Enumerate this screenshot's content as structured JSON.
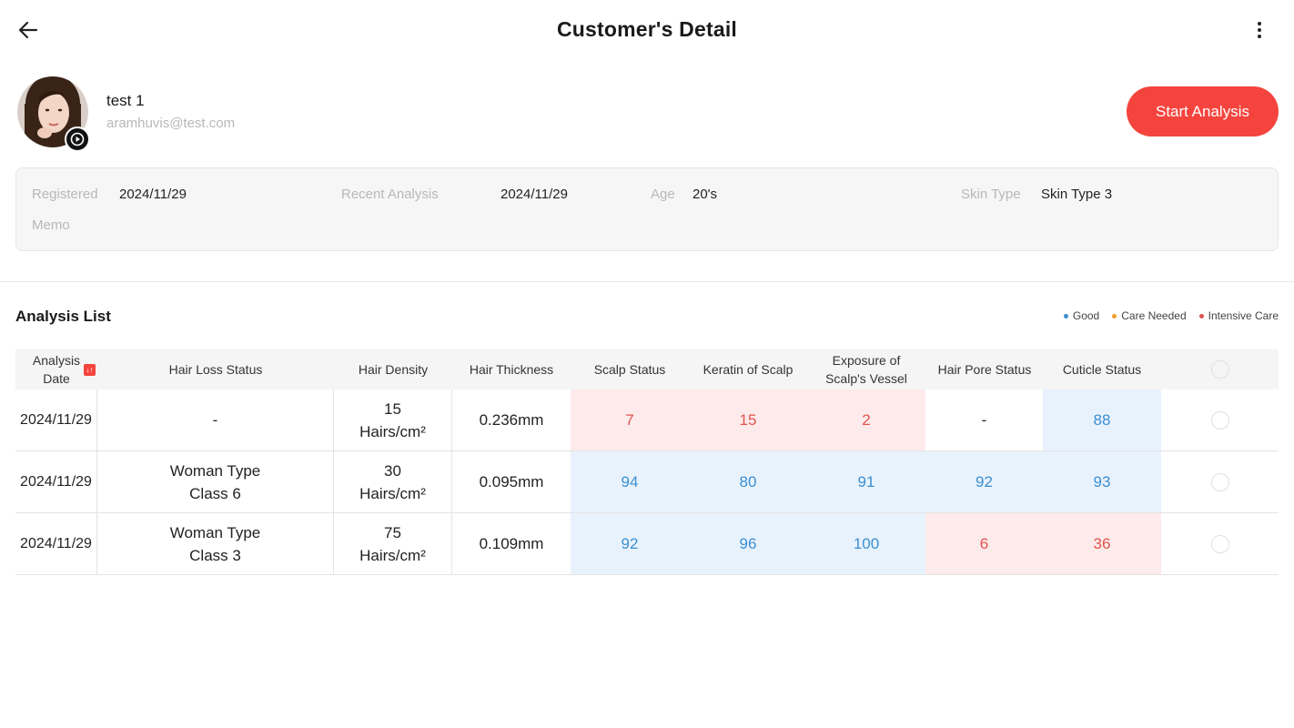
{
  "header": {
    "title": "Customer's Detail",
    "back_icon": "arrow-left-icon",
    "more_icon": "more-vertical-icon"
  },
  "customer": {
    "name": "test 1",
    "email": "aramhuvis@test.com",
    "badge_icon": "play-circle-icon"
  },
  "actions": {
    "start_analysis": "Start Analysis"
  },
  "info": {
    "registered_label": "Registered",
    "registered_value": "2024/11/29",
    "recent_label": "Recent Analysis",
    "recent_value": "2024/11/29",
    "age_label": "Age",
    "age_value": "20's",
    "skin_label": "Skin Type",
    "skin_value": "Skin Type 3",
    "memo_label": "Memo"
  },
  "analysis": {
    "title": "Analysis List",
    "legend": [
      {
        "label": "Good",
        "color": "#3b8fd0"
      },
      {
        "label": "Care Needed",
        "color": "#f0a030"
      },
      {
        "label": "Intensive Care",
        "color": "#e0534d"
      }
    ],
    "columns": {
      "date": "Analysis Date",
      "sort_badge": "↓↑",
      "hair_loss": "Hair Loss Status",
      "density": "Hair Density",
      "thickness": "Hair Thickness",
      "scalp": "Scalp Status",
      "keratin": "Keratin of Scalp",
      "vessel": "Exposure of Scalp's Vessel",
      "pore": "Hair Pore Status",
      "cuticle": "Cuticle Status"
    },
    "rows": [
      {
        "date": "2024/11/29",
        "hair_loss": "-",
        "density": "15 Hairs/cm²",
        "thickness": "0.236mm",
        "scalp": "7",
        "keratin": "15",
        "vessel": "2",
        "pore": "-",
        "cuticle": "88"
      },
      {
        "date": "2024/11/29",
        "hair_loss": "Woman Type Class 6",
        "density": "30 Hairs/cm²",
        "thickness": "0.095mm",
        "scalp": "94",
        "keratin": "80",
        "vessel": "91",
        "pore": "92",
        "cuticle": "93"
      },
      {
        "date": "2024/11/29",
        "hair_loss": "Woman Type Class 3",
        "density": "75 Hairs/cm²",
        "thickness": "0.109mm",
        "scalp": "92",
        "keratin": "96",
        "vessel": "100",
        "pore": "6",
        "cuticle": "36"
      }
    ]
  }
}
